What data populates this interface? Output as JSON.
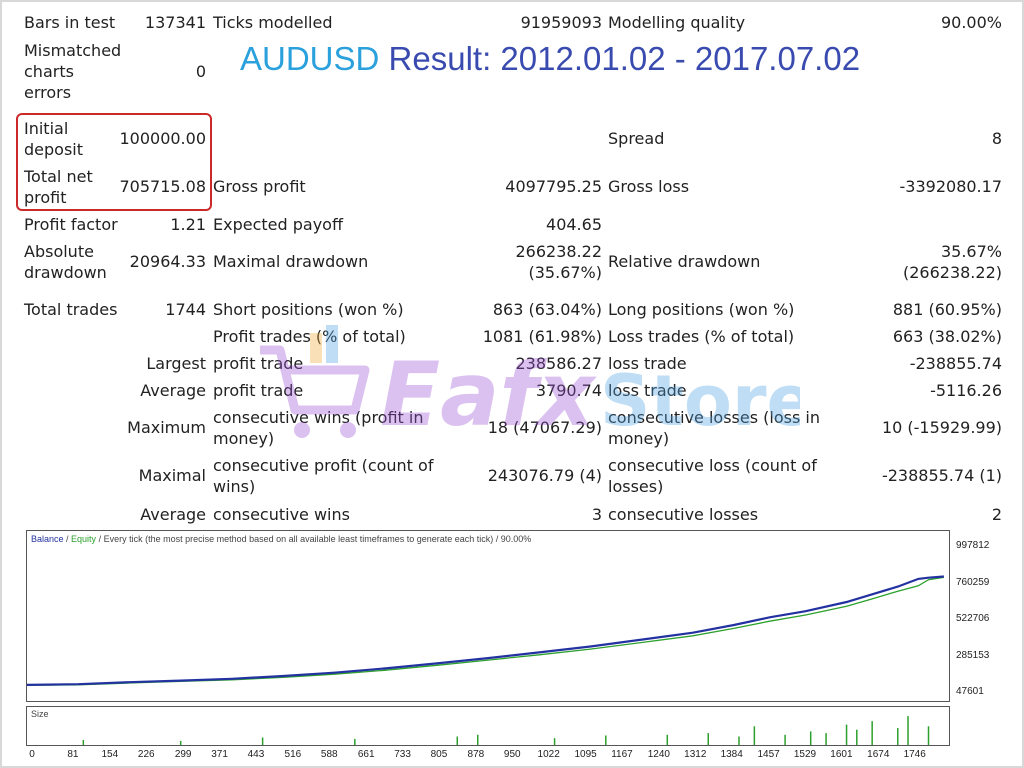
{
  "title": {
    "symbol": "AUDUSD",
    "result": "Result: 2012.01.02 - 2017.07.02"
  },
  "stats": {
    "bars_in_test_label": "Bars in test",
    "bars_in_test": "137341",
    "ticks_modelled_label": "Ticks modelled",
    "ticks_modelled": "91959093",
    "modelling_quality_label": "Modelling quality",
    "modelling_quality": "90.00%",
    "mismatched_label": [
      "Mismatched",
      "charts",
      "errors"
    ],
    "mismatched": "0",
    "initial_deposit_label": [
      "Initial",
      "deposit"
    ],
    "initial_deposit": "100000.00",
    "spread_label": "Spread",
    "spread": "8",
    "total_net_profit_label": [
      "Total net",
      "profit"
    ],
    "total_net_profit": "705715.08",
    "gross_profit_label": "Gross profit",
    "gross_profit": "4097795.25",
    "gross_loss_label": "Gross loss",
    "gross_loss": "-3392080.17",
    "profit_factor_label": "Profit factor",
    "profit_factor": "1.21",
    "expected_payoff_label": "Expected payoff",
    "expected_payoff": "404.65",
    "absolute_drawdown_label": [
      "Absolute",
      "drawdown"
    ],
    "absolute_drawdown": "20964.33",
    "maximal_drawdown_label": "Maximal drawdown",
    "maximal_drawdown": [
      "266238.22",
      "(35.67%)"
    ],
    "relative_drawdown_label": "Relative drawdown",
    "relative_drawdown": [
      "35.67%",
      "(266238.22)"
    ],
    "total_trades_label": "Total trades",
    "total_trades": "1744",
    "short_positions_label": "Short positions (won %)",
    "short_positions": "863 (63.04%)",
    "long_positions_label": "Long positions (won %)",
    "long_positions": "881 (60.95%)",
    "profit_trades_label": "Profit trades (% of total)",
    "profit_trades": "1081 (61.98%)",
    "loss_trades_label": "Loss trades (% of total)",
    "loss_trades": "663 (38.02%)",
    "largest_label": "Largest",
    "largest_profit_label": "profit trade",
    "largest_profit": "238586.27",
    "largest_loss_label": "loss trade",
    "largest_loss": "-238855.74",
    "average_label": "Average",
    "average_profit_label": "profit trade",
    "average_profit": "3790.74",
    "average_loss_label": "loss trade",
    "average_loss": "-5116.26",
    "maximum_label": "Maximum",
    "max_consec_wins_label": [
      "consecutive wins (profit in",
      "money)"
    ],
    "max_consec_wins": "18 (47067.29)",
    "max_consec_losses_label": [
      "consecutive losses (loss in",
      "money)"
    ],
    "max_consec_losses": "10 (-15929.99)",
    "maximal_label": "Maximal",
    "maximal_consec_profit_label": [
      "consecutive profit (count of",
      "wins)"
    ],
    "maximal_consec_profit": "243076.79 (4)",
    "maximal_consec_loss_label": [
      "consecutive loss (count of",
      "losses)"
    ],
    "maximal_consec_loss": "-238855.74 (1)",
    "average2_label": "Average",
    "avg_consec_wins_label": "consecutive wins",
    "avg_consec_wins": "3",
    "avg_consec_losses_label": "consecutive losses",
    "avg_consec_losses": "2"
  },
  "watermark": "Eafx Store",
  "chart_data": {
    "type": "line",
    "legend": {
      "balance": "Balance",
      "sep": " / ",
      "equity": "Equity",
      "text": " / Every tick (the most precise method based on all available least timeframes to generate each tick) / 90.00%"
    },
    "colors": {
      "balance": "#2332a0",
      "equity": "#2ca02c"
    },
    "y_ticks": [
      "997812",
      "760259",
      "522706",
      "285153",
      "47601"
    ],
    "ylim": [
      47601,
      997812
    ],
    "x_ticks": [
      "0",
      "81",
      "154",
      "226",
      "299",
      "371",
      "443",
      "516",
      "588",
      "661",
      "733",
      "805",
      "878",
      "950",
      "1022",
      "1095",
      "1167",
      "1240",
      "1312",
      "1384",
      "1457",
      "1529",
      "1601",
      "1674",
      "1746"
    ],
    "xlim": [
      0,
      1800
    ],
    "series": [
      {
        "name": "Balance",
        "points": [
          [
            0,
            100000
          ],
          [
            100,
            105000
          ],
          [
            200,
            118000
          ],
          [
            300,
            128000
          ],
          [
            400,
            140000
          ],
          [
            500,
            158000
          ],
          [
            600,
            180000
          ],
          [
            700,
            208000
          ],
          [
            800,
            240000
          ],
          [
            900,
            275000
          ],
          [
            1000,
            312000
          ],
          [
            1100,
            350000
          ],
          [
            1200,
            395000
          ],
          [
            1300,
            440000
          ],
          [
            1380,
            490000
          ],
          [
            1450,
            540000
          ],
          [
            1520,
            580000
          ],
          [
            1600,
            640000
          ],
          [
            1650,
            690000
          ],
          [
            1700,
            740000
          ],
          [
            1740,
            790000
          ],
          [
            1760,
            798000
          ],
          [
            1790,
            805715
          ]
        ]
      },
      {
        "name": "Equity",
        "points": [
          [
            0,
            98000
          ],
          [
            100,
            101000
          ],
          [
            200,
            113000
          ],
          [
            300,
            123000
          ],
          [
            400,
            133000
          ],
          [
            500,
            150000
          ],
          [
            600,
            170000
          ],
          [
            700,
            196000
          ],
          [
            800,
            228000
          ],
          [
            900,
            262000
          ],
          [
            1000,
            296000
          ],
          [
            1100,
            333000
          ],
          [
            1200,
            376000
          ],
          [
            1300,
            420000
          ],
          [
            1380,
            468000
          ],
          [
            1450,
            515000
          ],
          [
            1520,
            555000
          ],
          [
            1600,
            612000
          ],
          [
            1650,
            660000
          ],
          [
            1700,
            710000
          ],
          [
            1740,
            745000
          ],
          [
            1760,
            785000
          ],
          [
            1790,
            800000
          ]
        ]
      }
    ],
    "size_label": "Size",
    "size_spikes": [
      [
        110,
        0.15
      ],
      [
        300,
        0.12
      ],
      [
        460,
        0.22
      ],
      [
        640,
        0.18
      ],
      [
        840,
        0.25
      ],
      [
        880,
        0.3
      ],
      [
        1030,
        0.2
      ],
      [
        1130,
        0.28
      ],
      [
        1250,
        0.3
      ],
      [
        1330,
        0.35
      ],
      [
        1390,
        0.25
      ],
      [
        1420,
        0.55
      ],
      [
        1480,
        0.3
      ],
      [
        1530,
        0.4
      ],
      [
        1560,
        0.35
      ],
      [
        1600,
        0.6
      ],
      [
        1620,
        0.45
      ],
      [
        1650,
        0.7
      ],
      [
        1700,
        0.5
      ],
      [
        1720,
        0.85
      ],
      [
        1760,
        0.55
      ]
    ]
  }
}
